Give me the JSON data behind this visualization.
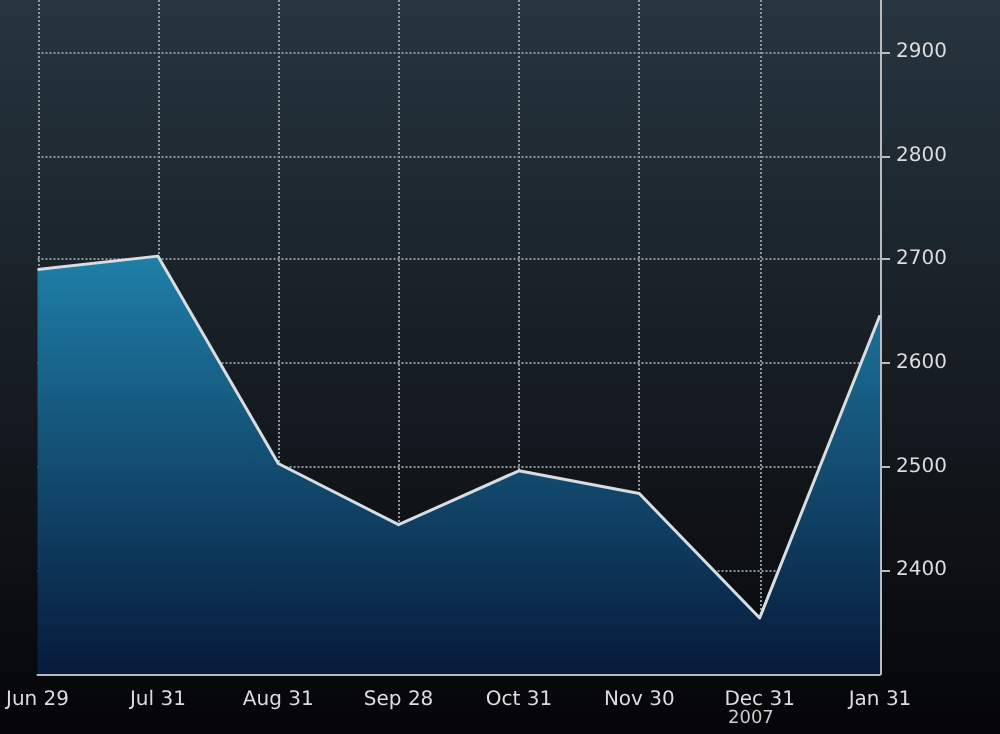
{
  "chart_data": {
    "type": "area",
    "categories": [
      "Jun 29",
      "Jul 31",
      "Aug 31",
      "Sep 28",
      "Oct 31",
      "Nov 30",
      "Dec 31",
      "Jan 31"
    ],
    "series": [
      {
        "color": "#d8dde2",
        "values": [
          2690,
          2703,
          2503,
          2444,
          2496,
          2474,
          2354,
          2646
        ]
      }
    ],
    "ylim": [
      2300,
      2950
    ],
    "yticks": [
      2400,
      2500,
      2600,
      2700,
      2800,
      2900
    ],
    "grid": true,
    "line_style": "solid",
    "marker": "none",
    "annotations": [
      "2007"
    ]
  }
}
